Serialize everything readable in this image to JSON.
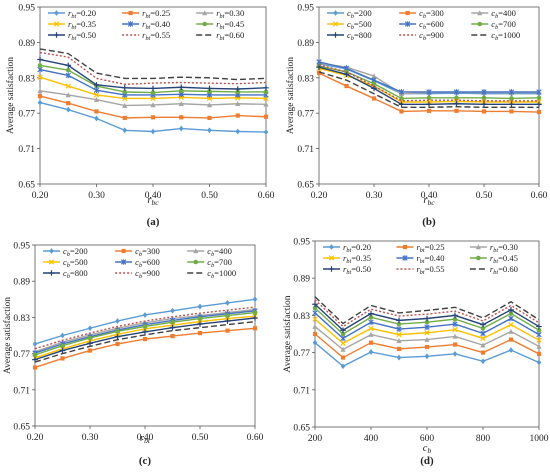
{
  "chart_data": [
    {
      "panel_label": "(a)",
      "type": "line",
      "xlabel": "r_bc",
      "xlabel_main": "r",
      "xlabel_sub": "bc",
      "ylabel": "Average satisfaction",
      "xlim": [
        0.2,
        0.6
      ],
      "ylim": [
        0.65,
        0.95
      ],
      "xticks": [
        "0.20",
        "0.30",
        "0.40",
        "0.50",
        "0.60"
      ],
      "yticks": [
        "0.65",
        "0.71",
        "0.77",
        "0.83",
        "0.89",
        "0.95"
      ],
      "legend_columns": 3,
      "x": [
        0.2,
        0.25,
        0.3,
        0.35,
        0.4,
        0.45,
        0.5,
        0.55,
        0.6
      ],
      "series": [
        {
          "name": "r_bt=0.20",
          "name_main": "r",
          "name_sub": "bt",
          "name_value": "=0.20",
          "color": "#5b9bd5",
          "dash": "",
          "marker": "diamond",
          "values": [
            0.788,
            0.776,
            0.761,
            0.741,
            0.739,
            0.744,
            0.741,
            0.739,
            0.738
          ]
        },
        {
          "name": "r_bt=0.25",
          "name_main": "r",
          "name_sub": "bt",
          "name_value": "=0.25",
          "color": "#ed7d31",
          "dash": "",
          "marker": "square",
          "values": [
            0.799,
            0.787,
            0.773,
            0.762,
            0.763,
            0.763,
            0.762,
            0.766,
            0.764
          ]
        },
        {
          "name": "r_bt=0.30",
          "name_main": "r",
          "name_sub": "bt",
          "name_value": "=0.30",
          "color": "#a5a5a5",
          "dash": "",
          "marker": "triangle",
          "values": [
            0.808,
            0.801,
            0.793,
            0.783,
            0.784,
            0.786,
            0.784,
            0.786,
            0.785
          ]
        },
        {
          "name": "r_bt=0.35",
          "name_main": "r",
          "name_sub": "bt",
          "name_value": "=0.35",
          "color": "#ffc000",
          "dash": "",
          "marker": "x",
          "values": [
            0.831,
            0.816,
            0.801,
            0.795,
            0.795,
            0.797,
            0.795,
            0.796,
            0.795
          ]
        },
        {
          "name": "r_bt=0.40",
          "name_main": "r",
          "name_sub": "bt",
          "name_value": "=0.40",
          "color": "#4472c4",
          "dash": "",
          "marker": "star",
          "values": [
            0.844,
            0.834,
            0.809,
            0.801,
            0.801,
            0.802,
            0.801,
            0.801,
            0.801
          ]
        },
        {
          "name": "r_bt=0.45",
          "name_main": "r",
          "name_sub": "bt",
          "name_value": "=0.45",
          "color": "#70ad47",
          "dash": "",
          "marker": "circle",
          "values": [
            0.851,
            0.843,
            0.816,
            0.806,
            0.805,
            0.808,
            0.807,
            0.806,
            0.806
          ]
        },
        {
          "name": "r_bt=0.50",
          "name_main": "r",
          "name_sub": "bt",
          "name_value": "=0.50",
          "color": "#264478",
          "dash": "",
          "marker": "plus",
          "values": [
            0.861,
            0.851,
            0.818,
            0.813,
            0.812,
            0.814,
            0.812,
            0.811,
            0.813
          ]
        },
        {
          "name": "r_bt=0.55",
          "name_main": "r",
          "name_sub": "bt",
          "name_value": "=0.55",
          "color": "#c0504d",
          "dash": "2 2",
          "marker": "none",
          "values": [
            0.873,
            0.865,
            0.829,
            0.819,
            0.821,
            0.822,
            0.821,
            0.82,
            0.822
          ]
        },
        {
          "name": "r_bt=0.60",
          "name_main": "r",
          "name_sub": "bt",
          "name_value": "=0.60",
          "color": "#404040",
          "dash": "6 3",
          "marker": "none",
          "values": [
            0.879,
            0.871,
            0.838,
            0.829,
            0.829,
            0.831,
            0.83,
            0.827,
            0.829
          ]
        }
      ]
    },
    {
      "panel_label": "(b)",
      "type": "line",
      "xlabel": "r_bc",
      "xlabel_main": "r",
      "xlabel_sub": "bc",
      "ylabel": "Average satisfaction",
      "xlim": [
        0.2,
        0.6
      ],
      "ylim": [
        0.65,
        0.95
      ],
      "xticks": [
        "0.20",
        "0.30",
        "0.40",
        "0.50",
        "0.60"
      ],
      "yticks": [
        "0.65",
        "0.71",
        "0.77",
        "0.83",
        "0.89",
        "0.95"
      ],
      "legend_columns": 3,
      "x": [
        0.2,
        0.25,
        0.3,
        0.35,
        0.4,
        0.45,
        0.5,
        0.55,
        0.6
      ],
      "series": [
        {
          "name": "c_b=200",
          "name_main": "c",
          "name_sub": "b",
          "name_value": "=200",
          "color": "#5b9bd5",
          "dash": "",
          "marker": "diamond",
          "values": [
            0.854,
            0.845,
            0.825,
            0.803,
            0.803,
            0.804,
            0.803,
            0.803,
            0.803
          ]
        },
        {
          "name": "c_b=300",
          "name_main": "c",
          "name_sub": "b",
          "name_value": "=300",
          "color": "#ed7d31",
          "dash": "",
          "marker": "square",
          "values": [
            0.838,
            0.816,
            0.795,
            0.773,
            0.774,
            0.774,
            0.773,
            0.773,
            0.772
          ]
        },
        {
          "name": "c_b=400",
          "name_main": "c",
          "name_sub": "b",
          "name_value": "=400",
          "color": "#a5a5a5",
          "dash": "",
          "marker": "triangle",
          "values": [
            0.855,
            0.848,
            0.833,
            0.803,
            0.805,
            0.806,
            0.805,
            0.805,
            0.805
          ]
        },
        {
          "name": "c_b=500",
          "name_main": "c",
          "name_sub": "b",
          "name_value": "=500",
          "color": "#ffc000",
          "dash": "",
          "marker": "x",
          "values": [
            0.846,
            0.834,
            0.816,
            0.789,
            0.789,
            0.79,
            0.789,
            0.789,
            0.789
          ]
        },
        {
          "name": "c_b=600",
          "name_main": "c",
          "name_sub": "b",
          "name_value": "=600",
          "color": "#4472c4",
          "dash": "",
          "marker": "star",
          "values": [
            0.857,
            0.846,
            0.826,
            0.806,
            0.806,
            0.806,
            0.806,
            0.806,
            0.806
          ]
        },
        {
          "name": "c_b=700",
          "name_main": "c",
          "name_sub": "b",
          "name_value": "=700",
          "color": "#70ad47",
          "dash": "",
          "marker": "circle",
          "values": [
            0.85,
            0.84,
            0.82,
            0.795,
            0.796,
            0.796,
            0.796,
            0.795,
            0.796
          ]
        },
        {
          "name": "c_b=800",
          "name_main": "c",
          "name_sub": "b",
          "name_value": "=800",
          "color": "#264478",
          "dash": "",
          "marker": "plus",
          "values": [
            0.848,
            0.836,
            0.812,
            0.785,
            0.785,
            0.786,
            0.785,
            0.785,
            0.785
          ]
        },
        {
          "name": "c_b=900",
          "name_main": "c",
          "name_sub": "b",
          "name_value": "=900",
          "color": "#c0504d",
          "dash": "2 2",
          "marker": "none",
          "values": [
            0.852,
            0.84,
            0.816,
            0.791,
            0.792,
            0.792,
            0.791,
            0.791,
            0.791
          ]
        },
        {
          "name": "c_b=1000",
          "name_main": "c",
          "name_sub": "b",
          "name_value": "=1000",
          "color": "#404040",
          "dash": "6 3",
          "marker": "none",
          "values": [
            0.84,
            0.826,
            0.803,
            0.78,
            0.78,
            0.781,
            0.78,
            0.78,
            0.78
          ]
        }
      ]
    },
    {
      "panel_label": "(c)",
      "type": "line",
      "xlabel": "r_bt",
      "xlabel_main": "r",
      "xlabel_sub": "bt",
      "ylabel": "Average satisfaction",
      "xlim": [
        0.2,
        0.6
      ],
      "ylim": [
        0.65,
        0.95
      ],
      "xticks": [
        "0.20",
        "0.30",
        "0.40",
        "0.50",
        "0.60"
      ],
      "yticks": [
        "0.65",
        "0.71",
        "0.77",
        "0.83",
        "0.89",
        "0.95"
      ],
      "legend_columns": 3,
      "x": [
        0.2,
        0.25,
        0.3,
        0.35,
        0.4,
        0.45,
        0.5,
        0.55,
        0.6
      ],
      "series": [
        {
          "name": "c_b=200",
          "name_main": "c",
          "name_sub": "b",
          "name_value": "=200",
          "color": "#5b9bd5",
          "dash": "",
          "marker": "diamond",
          "values": [
            0.786,
            0.8,
            0.812,
            0.824,
            0.834,
            0.841,
            0.848,
            0.854,
            0.86
          ]
        },
        {
          "name": "c_b=300",
          "name_main": "c",
          "name_sub": "b",
          "name_value": "=300",
          "color": "#ed7d31",
          "dash": "",
          "marker": "square",
          "values": [
            0.747,
            0.762,
            0.775,
            0.786,
            0.794,
            0.799,
            0.804,
            0.808,
            0.812
          ]
        },
        {
          "name": "c_b=400",
          "name_main": "c",
          "name_sub": "b",
          "name_value": "=400",
          "color": "#a5a5a5",
          "dash": "",
          "marker": "triangle",
          "values": [
            0.773,
            0.789,
            0.801,
            0.812,
            0.821,
            0.828,
            0.833,
            0.838,
            0.843
          ]
        },
        {
          "name": "c_b=500",
          "name_main": "c",
          "name_sub": "b",
          "name_value": "=500",
          "color": "#ffc000",
          "dash": "",
          "marker": "x",
          "values": [
            0.763,
            0.778,
            0.791,
            0.802,
            0.811,
            0.817,
            0.823,
            0.828,
            0.832
          ]
        },
        {
          "name": "c_b=600",
          "name_main": "c",
          "name_sub": "b",
          "name_value": "=600",
          "color": "#4472c4",
          "dash": "",
          "marker": "star",
          "values": [
            0.771,
            0.786,
            0.798,
            0.809,
            0.818,
            0.825,
            0.831,
            0.836,
            0.841
          ]
        },
        {
          "name": "c_b=700",
          "name_main": "c",
          "name_sub": "b",
          "name_value": "=700",
          "color": "#70ad47",
          "dash": "",
          "marker": "circle",
          "values": [
            0.768,
            0.783,
            0.796,
            0.807,
            0.815,
            0.822,
            0.828,
            0.833,
            0.838
          ]
        },
        {
          "name": "c_b=800",
          "name_main": "c",
          "name_sub": "b",
          "name_value": "=800",
          "color": "#264478",
          "dash": "",
          "marker": "plus",
          "values": [
            0.76,
            0.775,
            0.787,
            0.798,
            0.806,
            0.813,
            0.819,
            0.824,
            0.829
          ]
        },
        {
          "name": "c_b=900",
          "name_main": "c",
          "name_sub": "b",
          "name_value": "=900",
          "color": "#c0504d",
          "dash": "2 2",
          "marker": "none",
          "values": [
            0.778,
            0.792,
            0.804,
            0.815,
            0.824,
            0.831,
            0.837,
            0.842,
            0.847
          ]
        },
        {
          "name": "c_b=1000",
          "name_main": "c",
          "name_sub": "b",
          "name_value": "=1000",
          "color": "#404040",
          "dash": "6 3",
          "marker": "none",
          "values": [
            0.756,
            0.77,
            0.782,
            0.793,
            0.801,
            0.808,
            0.813,
            0.818,
            0.823
          ]
        }
      ]
    },
    {
      "panel_label": "(d)",
      "type": "line",
      "xlabel": "c_b",
      "xlabel_main": "c",
      "xlabel_sub": "b",
      "ylabel": "Average satisfaction",
      "xlim": [
        200,
        1000
      ],
      "ylim": [
        0.65,
        0.95
      ],
      "xticks": [
        "200",
        "400",
        "600",
        "800",
        "1000"
      ],
      "yticks": [
        "0.65",
        "0.71",
        "0.77",
        "0.83",
        "0.89",
        "0.95"
      ],
      "legend_columns": 3,
      "x": [
        200,
        300,
        400,
        500,
        600,
        700,
        800,
        900,
        1000
      ],
      "series": [
        {
          "name": "r_bt=0.20",
          "name_main": "r",
          "name_sub": "bt",
          "name_value": "=0.20",
          "color": "#5b9bd5",
          "dash": "",
          "marker": "diamond",
          "values": [
            0.786,
            0.748,
            0.771,
            0.762,
            0.764,
            0.768,
            0.756,
            0.774,
            0.754
          ]
        },
        {
          "name": "r_bt=0.25",
          "name_main": "r",
          "name_sub": "bt",
          "name_value": "=0.25",
          "color": "#ed7d31",
          "dash": "",
          "marker": "square",
          "values": [
            0.8,
            0.762,
            0.786,
            0.776,
            0.779,
            0.783,
            0.77,
            0.791,
            0.768
          ]
        },
        {
          "name": "r_bt=0.30",
          "name_main": "r",
          "name_sub": "bt",
          "name_value": "=0.30",
          "color": "#a5a5a5",
          "dash": "",
          "marker": "triangle",
          "values": [
            0.812,
            0.775,
            0.799,
            0.789,
            0.791,
            0.796,
            0.782,
            0.804,
            0.78
          ]
        },
        {
          "name": "r_bt=0.35",
          "name_main": "r",
          "name_sub": "bt",
          "name_value": "=0.35",
          "color": "#ffc000",
          "dash": "",
          "marker": "x",
          "values": [
            0.824,
            0.785,
            0.809,
            0.799,
            0.802,
            0.807,
            0.793,
            0.815,
            0.79
          ]
        },
        {
          "name": "r_bt=0.40",
          "name_main": "r",
          "name_sub": "bt",
          "name_value": "=0.40",
          "color": "#4472c4",
          "dash": "",
          "marker": "star",
          "values": [
            0.834,
            0.793,
            0.819,
            0.808,
            0.811,
            0.816,
            0.801,
            0.825,
            0.799
          ]
        },
        {
          "name": "r_bt=0.45",
          "name_main": "r",
          "name_sub": "bt",
          "name_value": "=0.45",
          "color": "#70ad47",
          "dash": "",
          "marker": "circle",
          "values": [
            0.842,
            0.8,
            0.827,
            0.816,
            0.819,
            0.824,
            0.809,
            0.833,
            0.806
          ]
        },
        {
          "name": "r_bt=0.50",
          "name_main": "r",
          "name_sub": "bt",
          "name_value": "=0.50",
          "color": "#264478",
          "dash": "",
          "marker": "plus",
          "values": [
            0.848,
            0.806,
            0.833,
            0.822,
            0.825,
            0.83,
            0.815,
            0.839,
            0.812
          ]
        },
        {
          "name": "r_bt=0.55",
          "name_main": "r",
          "name_sub": "bt",
          "name_value": "=0.55",
          "color": "#c0504d",
          "dash": "2 2",
          "marker": "none",
          "values": [
            0.855,
            0.812,
            0.84,
            0.829,
            0.832,
            0.837,
            0.821,
            0.846,
            0.818
          ]
        },
        {
          "name": "r_bt=0.60",
          "name_main": "r",
          "name_sub": "bt",
          "name_value": "=0.60",
          "color": "#404040",
          "dash": "6 3",
          "marker": "none",
          "values": [
            0.86,
            0.817,
            0.846,
            0.834,
            0.838,
            0.843,
            0.826,
            0.852,
            0.823
          ]
        }
      ]
    }
  ]
}
